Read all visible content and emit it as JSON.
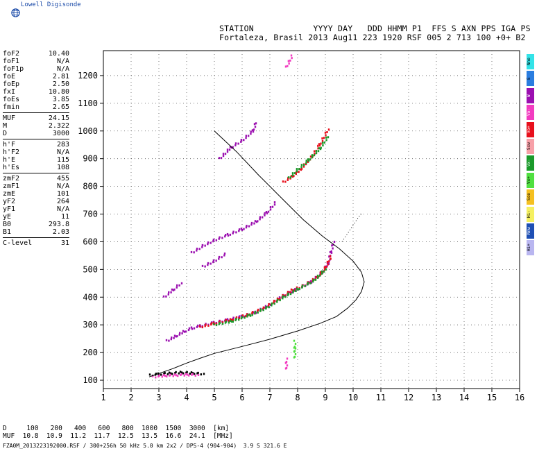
{
  "brand": {
    "name": "Lowell Digisonde",
    "logo_icon": "globe-icon"
  },
  "header": {
    "line1": "STATION            YYYY DAY   DDD HHMM P1  FFS S AXN PPS IGA PS",
    "line2": "Fortaleza, Brasil 2013 Aug11 223 1920 RSF 005 2 713 100 +0+ B2"
  },
  "params": [
    {
      "name": "foF2",
      "value": "10.40"
    },
    {
      "name": "foF1",
      "value": "N/A"
    },
    {
      "name": "foF1p",
      "value": "N/A"
    },
    {
      "name": "foE",
      "value": "2.81"
    },
    {
      "name": "foEp",
      "value": "2.50"
    },
    {
      "name": "fxI",
      "value": "10.80"
    },
    {
      "name": "foEs",
      "value": "3.85"
    },
    {
      "name": "fmin",
      "value": "2.65"
    },
    {
      "sep": true
    },
    {
      "name": "MUF",
      "value": "24.15"
    },
    {
      "name": "M",
      "value": "2.322"
    },
    {
      "name": "D",
      "value": "3000"
    },
    {
      "sep": true
    },
    {
      "name": "h'F",
      "value": "283"
    },
    {
      "name": "h'F2",
      "value": "N/A"
    },
    {
      "name": "h'E",
      "value": "115"
    },
    {
      "name": "h'Es",
      "value": "108"
    },
    {
      "sep": true
    },
    {
      "name": "zmF2",
      "value": "455"
    },
    {
      "name": "zmF1",
      "value": "N/A"
    },
    {
      "name": "zmE",
      "value": "101"
    },
    {
      "name": "yF2",
      "value": "264"
    },
    {
      "name": "yF1",
      "value": "N/A"
    },
    {
      "name": "yE",
      "value": "11"
    },
    {
      "name": "B0",
      "value": "293.8"
    },
    {
      "name": "B1",
      "value": "2.03"
    },
    {
      "sep": true
    },
    {
      "name": "C-level",
      "value": "31"
    }
  ],
  "legend": [
    {
      "label": "Nne",
      "color": "#33e3e8",
      "text": "#000000"
    },
    {
      "label": "E",
      "color": "#2a7de0",
      "text": "#000000"
    },
    {
      "label": "W",
      "color": "#9b0fb0",
      "text": "#ffffff"
    },
    {
      "label": "Vo-",
      "color": "#f23cc0",
      "text": "#ffffff"
    },
    {
      "label": "Vo+",
      "color": "#e8101c",
      "text": "#ffffff"
    },
    {
      "label": "Ssw",
      "color": "#f7a0a8",
      "text": "#000000"
    },
    {
      "label": "Vx-",
      "color": "#1a9a2a",
      "text": "#ffffff"
    },
    {
      "label": "Vx+",
      "color": "#50e040",
      "text": "#000000"
    },
    {
      "label": "Sse",
      "color": "#f5c020",
      "text": "#000000"
    },
    {
      "label": "Hi-",
      "color": "#f5f060",
      "text": "#000000"
    },
    {
      "label": "Nnw",
      "color": "#1e4fb4",
      "text": "#ffffff"
    },
    {
      "label": "Hi+",
      "color": "#b9b6f0",
      "text": "#000000"
    }
  ],
  "muf_table": {
    "d_label": "D",
    "d_values": [
      "100",
      "200",
      "400",
      "600",
      "800",
      "1000",
      "1500",
      "3000"
    ],
    "d_unit": "[km]",
    "muf_label": "MUF",
    "muf_values": [
      "10.8",
      "10.9",
      "11.2",
      "11.7",
      "12.5",
      "13.5",
      "16.6",
      "24.1"
    ],
    "muf_unit": "[MHz]"
  },
  "footer": "FZA0M_2013223192000.RSF / 300+256h 50 kHz 5.0 km 2x2 / DPS-4 (904-904)  3.9 S 321.6 E",
  "chart_data": {
    "type": "scatter",
    "xlim": [
      1,
      16
    ],
    "ylim": [
      70,
      1290
    ],
    "x_ticks": [
      1,
      2,
      3,
      4,
      5,
      6,
      7,
      8,
      9,
      10,
      11,
      12,
      13,
      14,
      15,
      16
    ],
    "y_ticks": [
      100,
      200,
      300,
      400,
      500,
      600,
      700,
      800,
      900,
      1000,
      1100,
      1200
    ],
    "grid": true,
    "profile_curve": [
      [
        2.65,
        112
      ],
      [
        3.0,
        124
      ],
      [
        3.5,
        142
      ],
      [
        4.0,
        162
      ],
      [
        4.5,
        180
      ],
      [
        5.0,
        197
      ],
      [
        6.0,
        222
      ],
      [
        7.0,
        248
      ],
      [
        8.0,
        278
      ],
      [
        8.8,
        305
      ],
      [
        9.4,
        330
      ],
      [
        9.8,
        360
      ],
      [
        10.1,
        390
      ],
      [
        10.3,
        420
      ],
      [
        10.4,
        455
      ],
      [
        10.3,
        490
      ],
      [
        10.0,
        530
      ],
      [
        9.5,
        575
      ],
      [
        8.9,
        620
      ],
      [
        8.2,
        680
      ],
      [
        7.4,
        760
      ],
      [
        6.6,
        840
      ],
      [
        5.8,
        925
      ],
      [
        5.0,
        1000
      ]
    ],
    "xtrace_curve": [
      [
        9.6,
        600
      ],
      [
        9.8,
        630
      ],
      [
        10.0,
        660
      ],
      [
        10.2,
        690
      ],
      [
        10.3,
        700
      ]
    ],
    "echo_traces": [
      {
        "points": [
          [
            3.3,
            242
          ],
          [
            3.6,
            258
          ],
          [
            3.9,
            275
          ],
          [
            4.2,
            288
          ],
          [
            4.5,
            296
          ],
          [
            5.0,
            308
          ],
          [
            5.5,
            318
          ],
          [
            6.0,
            330
          ],
          [
            6.5,
            345
          ],
          [
            7.0,
            372
          ],
          [
            7.5,
            405
          ],
          [
            8.0,
            430
          ],
          [
            8.5,
            455
          ],
          [
            8.9,
            490
          ],
          [
            9.1,
            520
          ],
          [
            9.2,
            560
          ],
          [
            9.3,
            600
          ]
        ],
        "color": "#9b0fb0"
      },
      {
        "points": [
          [
            4.5,
            292
          ],
          [
            5.0,
            305
          ],
          [
            5.6,
            318
          ],
          [
            6.2,
            336
          ],
          [
            6.8,
            360
          ],
          [
            7.3,
            392
          ],
          [
            7.8,
            425
          ],
          [
            8.2,
            440
          ],
          [
            8.7,
            470
          ],
          [
            9.0,
            505
          ],
          [
            9.2,
            545
          ]
        ],
        "color": "#e8101c"
      },
      {
        "points": [
          [
            5.0,
            300
          ],
          [
            5.6,
            312
          ],
          [
            6.3,
            335
          ],
          [
            6.9,
            362
          ],
          [
            7.5,
            400
          ],
          [
            8.0,
            428
          ],
          [
            8.6,
            460
          ],
          [
            9.0,
            500
          ]
        ],
        "color": "#1a9a2a"
      },
      {
        "points": [
          [
            4.2,
            560
          ],
          [
            4.6,
            585
          ],
          [
            5.0,
            605
          ],
          [
            5.5,
            625
          ],
          [
            6.0,
            645
          ],
          [
            6.5,
            672
          ],
          [
            6.9,
            705
          ],
          [
            7.2,
            740
          ]
        ],
        "color": "#9b0fb0"
      },
      {
        "points": [
          [
            3.2,
            400
          ],
          [
            3.5,
            425
          ],
          [
            3.8,
            450
          ]
        ],
        "color": "#9b0fb0"
      },
      {
        "points": [
          [
            4.6,
            510
          ],
          [
            5.0,
            530
          ],
          [
            5.4,
            555
          ]
        ],
        "color": "#9b0fb0"
      },
      {
        "points": [
          [
            5.2,
            900
          ],
          [
            5.6,
            940
          ],
          [
            6.0,
            965
          ],
          [
            6.4,
            1000
          ],
          [
            6.5,
            1030
          ]
        ],
        "color": "#9b0fb0"
      },
      {
        "points": [
          [
            7.5,
            815
          ],
          [
            7.8,
            835
          ],
          [
            8.1,
            860
          ],
          [
            8.5,
            905
          ],
          [
            8.8,
            950
          ],
          [
            9.1,
            1005
          ]
        ],
        "color": "#e8101c"
      },
      {
        "points": [
          [
            7.7,
            830
          ],
          [
            8.0,
            860
          ],
          [
            8.4,
            895
          ],
          [
            8.8,
            935
          ],
          [
            9.1,
            980
          ]
        ],
        "color": "#1a9a2a"
      },
      {
        "points": [
          [
            2.7,
            118
          ],
          [
            3.0,
            122
          ],
          [
            3.4,
            125
          ],
          [
            3.8,
            128
          ],
          [
            4.2,
            126
          ],
          [
            4.6,
            123
          ]
        ],
        "color": "#000000"
      },
      {
        "points": [
          [
            2.8,
            112
          ],
          [
            3.2,
            116
          ],
          [
            3.6,
            118
          ],
          [
            4.0,
            120
          ],
          [
            4.4,
            119
          ]
        ],
        "color": "#f23cc0"
      },
      {
        "points": [
          [
            7.6,
            1230
          ],
          [
            7.7,
            1250
          ],
          [
            7.8,
            1270
          ]
        ],
        "color": "#f23cc0"
      },
      {
        "points": [
          [
            7.6,
            140
          ],
          [
            7.6,
            160
          ],
          [
            7.6,
            178
          ]
        ],
        "color": "#f23cc0"
      },
      {
        "points": [
          [
            7.9,
            180
          ],
          [
            7.9,
            215
          ],
          [
            7.9,
            240
          ]
        ],
        "color": "#50e040"
      }
    ]
  }
}
